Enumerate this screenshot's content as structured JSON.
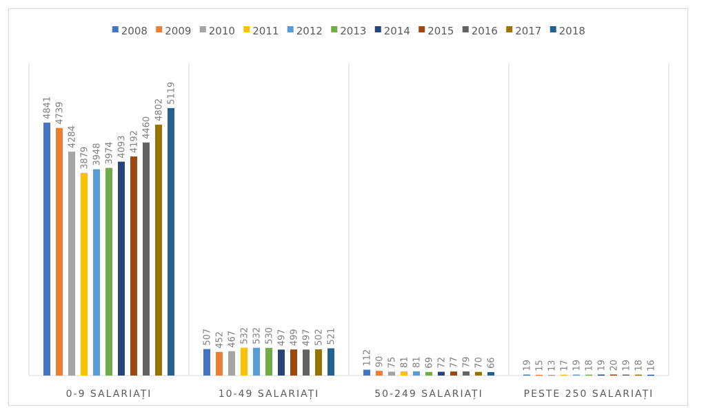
{
  "chart_data": {
    "type": "bar",
    "title": "",
    "xlabel": "",
    "ylabel": "",
    "ylim": [
      0,
      6000
    ],
    "grid": "vertical category separators",
    "legend_position": "top",
    "categories": [
      "0-9 SALARIAȚI",
      "10-49 SALARIAȚI",
      "50-249 SALARIAȚI",
      "PESTE 250 SALARIAȚI"
    ],
    "series": [
      {
        "name": "2008",
        "color": "#4472C4",
        "values": [
          4841,
          507,
          112,
          19
        ]
      },
      {
        "name": "2009",
        "color": "#ED7D31",
        "values": [
          4739,
          452,
          90,
          15
        ]
      },
      {
        "name": "2010",
        "color": "#A5A5A5",
        "values": [
          4284,
          467,
          75,
          13
        ]
      },
      {
        "name": "2011",
        "color": "#FFC000",
        "values": [
          3879,
          532,
          81,
          17
        ]
      },
      {
        "name": "2012",
        "color": "#5B9BD5",
        "values": [
          3948,
          532,
          81,
          19
        ]
      },
      {
        "name": "2013",
        "color": "#70AD47",
        "values": [
          3974,
          530,
          69,
          18
        ]
      },
      {
        "name": "2014",
        "color": "#264478",
        "values": [
          4093,
          497,
          72,
          19
        ]
      },
      {
        "name": "2015",
        "color": "#9E480E",
        "values": [
          4192,
          499,
          77,
          20
        ]
      },
      {
        "name": "2016",
        "color": "#636363",
        "values": [
          4460,
          497,
          79,
          19
        ]
      },
      {
        "name": "2017",
        "color": "#997300",
        "values": [
          4802,
          502,
          70,
          18
        ]
      },
      {
        "name": "2018",
        "color": "#255E91",
        "values": [
          5119,
          521,
          66,
          16
        ]
      }
    ]
  }
}
